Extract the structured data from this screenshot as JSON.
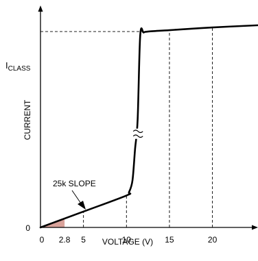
{
  "chart_data": {
    "type": "line",
    "title": "",
    "xlabel": "VOLTAGE (V)",
    "ylabel": "CURRENT",
    "x_ticks": [
      "0",
      "2.8",
      "5",
      "10",
      "15",
      "20"
    ],
    "x_tick_values": [
      0,
      2.8,
      5,
      10,
      15,
      20
    ],
    "y_ticks": [
      "0"
    ],
    "y_label_main": "I",
    "y_label_sub": "CLASS",
    "xlim": [
      0,
      25.3
    ],
    "ylim": [
      0,
      1.14
    ],
    "grid": false,
    "series": [
      {
        "x": [
          0,
          5,
          10,
          10.3,
          10.7,
          11.0,
          11.3,
          11.6,
          12.0,
          12.5,
          15,
          20,
          25.3
        ],
        "y": [
          0,
          0.081,
          0.163,
          0.18,
          0.24,
          0.4,
          0.55,
          0.98,
          0.995,
          1.0,
          1.007,
          1.021,
          1.032
        ]
      }
    ],
    "slope_label": "25k SLOPE",
    "shaded_region_x": [
      0,
      2.8
    ],
    "shaded_color": "#d9a29a",
    "dashed_verticals_x": [
      5,
      10,
      15,
      20
    ],
    "dashed_horizontal_y": 1.0,
    "break_marker_x": 11.35
  }
}
